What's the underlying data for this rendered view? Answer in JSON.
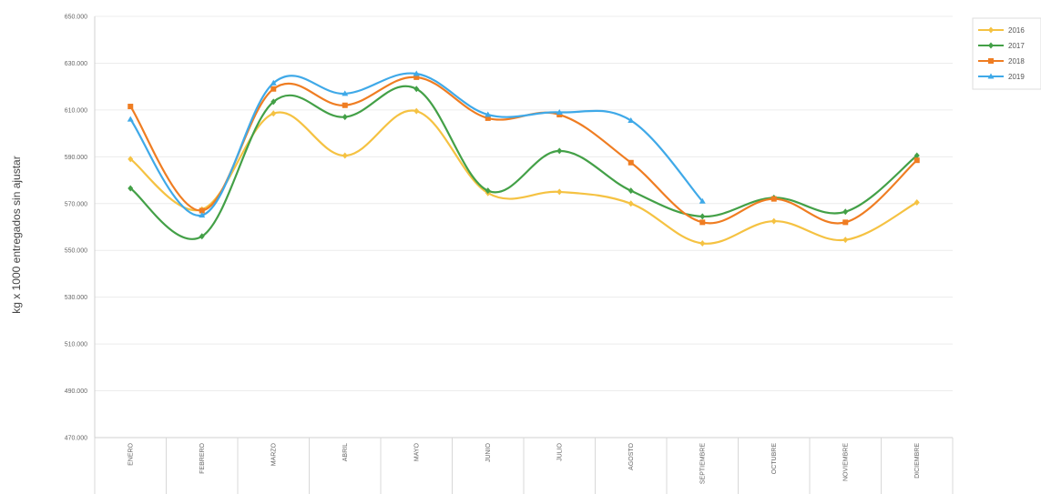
{
  "chart_data": {
    "type": "line",
    "title": "",
    "xlabel": "",
    "ylabel": "kg x 1000 entregados sin ajustar",
    "categories": [
      "ENERO",
      "FEBRERO",
      "MARZO",
      "ABRIL",
      "MAYO",
      "JUNIO",
      "JULIO",
      "AGOSTO",
      "SEPTIEMBRE",
      "OCTUBRE",
      "NOVIEMBRE",
      "DICIEMBRE"
    ],
    "y_ticks": [
      "470.000",
      "490.000",
      "510.000",
      "530.000",
      "550.000",
      "570.000",
      "590.000",
      "610.000",
      "630.000",
      "650.000"
    ],
    "ylim": [
      470000,
      650000
    ],
    "grid": true,
    "legend_position": "top-right",
    "series": [
      {
        "name": "2016",
        "color": "#f5c242",
        "marker": "diamond",
        "values": [
          589000,
          567500,
          608500,
          590500,
          609500,
          574500,
          575000,
          570000,
          553000,
          562500,
          554500,
          570500
        ]
      },
      {
        "name": "2017",
        "color": "#43a047",
        "marker": "diamond",
        "values": [
          576500,
          556000,
          613500,
          607000,
          619000,
          575500,
          592500,
          575500,
          564500,
          572500,
          566500,
          590500
        ]
      },
      {
        "name": "2018",
        "color": "#ef7d22",
        "marker": "square",
        "values": [
          611500,
          567000,
          619000,
          612000,
          624000,
          606500,
          608000,
          587500,
          562000,
          572000,
          562000,
          588500
        ]
      },
      {
        "name": "2019",
        "color": "#3fa9e8",
        "marker": "triangle",
        "values": [
          606000,
          565000,
          621500,
          617000,
          625500,
          608000,
          609000,
          605500,
          571000,
          null,
          null,
          null
        ]
      }
    ]
  }
}
